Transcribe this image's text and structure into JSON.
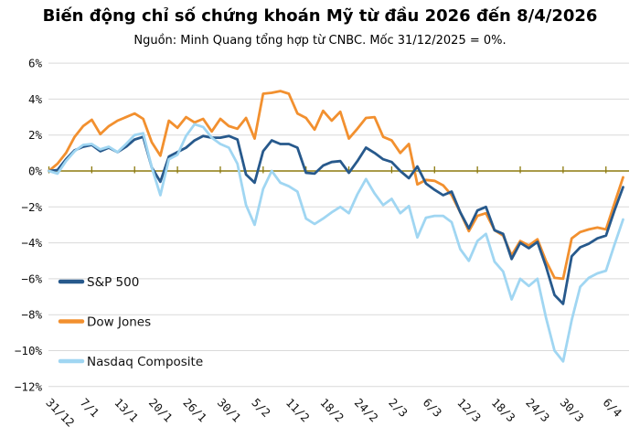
{
  "title": "Biến động chỉ số chứng khoán Mỹ từ đầu 2026 đến 8/4/2026",
  "subtitle": "Nguồn: Minh Quang tổng hợp từ CNBC. Mốc 31/12/2025 = 0%.",
  "colors": {
    "background": "#ffffff",
    "gridline": "#d9d9d9",
    "zero_axis": "#8d7a0f",
    "text": "#111111",
    "sp500": "#27598c",
    "dow": "#f2902f",
    "nasdaq": "#a0d6f2"
  },
  "chart_data": {
    "type": "line",
    "title": "Biến động chỉ số chứng khoán Mỹ từ đầu 2026 đến 8/4/2026",
    "subtitle": "Nguồn: Minh Quang tổng hợp từ CNBC. Mốc 31/12/2025 = 0%.",
    "ylabel": "",
    "xlabel": "",
    "unit": "%",
    "ylim": [
      -12,
      6
    ],
    "grid": "horizontal-only",
    "baseline": 0,
    "y_tick_labels": [
      "6%",
      "4%",
      "2%",
      "0%",
      "−2%",
      "−4%",
      "−6%",
      "−8%",
      "−10%",
      "−12%"
    ],
    "y_tick_values": [
      6,
      4,
      2,
      0,
      -2,
      -4,
      -6,
      -8,
      -10,
      -12
    ],
    "x_points_count": 68,
    "x_tick_labels": [
      {
        "index": 0,
        "label": "31/12"
      },
      {
        "index": 4,
        "label": "7/1"
      },
      {
        "index": 8,
        "label": "13/1"
      },
      {
        "index": 12,
        "label": "20/1"
      },
      {
        "index": 16,
        "label": "26/1"
      },
      {
        "index": 20,
        "label": "30/1"
      },
      {
        "index": 24,
        "label": "5/2"
      },
      {
        "index": 28,
        "label": "11/2"
      },
      {
        "index": 32,
        "label": "18/2"
      },
      {
        "index": 36,
        "label": "24/2"
      },
      {
        "index": 40,
        "label": "2/3"
      },
      {
        "index": 44,
        "label": "6/3"
      },
      {
        "index": 48,
        "label": "12/3"
      },
      {
        "index": 52,
        "label": "18/3"
      },
      {
        "index": 56,
        "label": "24/3"
      },
      {
        "index": 60,
        "label": "30/3"
      },
      {
        "index": 65,
        "label": "6/4"
      }
    ],
    "axis_tick_step": 5,
    "legend": {
      "position": "inside-left",
      "entries": [
        "S&P 500",
        "Dow Jones",
        "Nasdaq Composite"
      ]
    },
    "series": [
      {
        "name": "Dow Jones",
        "color": "#f2902f",
        "values": [
          0,
          0.4,
          1.0,
          1.9,
          2.5,
          2.85,
          2.05,
          2.5,
          2.8,
          3.0,
          3.2,
          2.9,
          1.6,
          0.85,
          2.8,
          2.4,
          3.0,
          2.7,
          2.9,
          2.2,
          2.9,
          2.5,
          2.35,
          2.95,
          1.8,
          4.3,
          4.35,
          4.45,
          4.3,
          3.2,
          2.95,
          2.3,
          3.35,
          2.8,
          3.3,
          1.8,
          2.35,
          2.95,
          3.0,
          1.9,
          1.7,
          1.0,
          1.5,
          -0.75,
          -0.5,
          -0.55,
          -0.8,
          -1.35,
          -2.3,
          -3.35,
          -2.5,
          -2.35,
          -3.3,
          -3.6,
          -4.7,
          -3.9,
          -4.15,
          -3.8,
          -5.0,
          -5.95,
          -6.0,
          -3.75,
          -3.4,
          -3.25,
          -3.15,
          -3.25,
          -1.8,
          -0.35
        ]
      },
      {
        "name": "S&P 500",
        "color": "#27598c",
        "values": [
          0,
          0.05,
          0.65,
          1.15,
          1.35,
          1.45,
          1.1,
          1.3,
          1.05,
          1.35,
          1.75,
          1.9,
          0.2,
          -0.6,
          0.8,
          1.05,
          1.3,
          1.7,
          1.95,
          1.85,
          1.85,
          1.95,
          1.75,
          -0.2,
          -0.65,
          1.1,
          1.7,
          1.5,
          1.5,
          1.3,
          -0.1,
          -0.15,
          0.3,
          0.5,
          0.55,
          -0.1,
          0.55,
          1.3,
          1.0,
          0.65,
          0.5,
          0.0,
          -0.4,
          0.25,
          -0.7,
          -1.05,
          -1.35,
          -1.15,
          -2.3,
          -3.2,
          -2.2,
          -2.0,
          -3.3,
          -3.5,
          -4.9,
          -4.0,
          -4.3,
          -3.95,
          -5.3,
          -6.9,
          -7.4,
          -4.75,
          -4.25,
          -4.05,
          -3.75,
          -3.6,
          -2.2,
          -0.9
        ]
      },
      {
        "name": "Nasdaq Composite",
        "color": "#a0d6f2",
        "values": [
          0,
          -0.15,
          0.55,
          1.1,
          1.45,
          1.5,
          1.2,
          1.35,
          1.05,
          1.5,
          2.0,
          2.1,
          0.2,
          -1.35,
          0.65,
          0.9,
          1.95,
          2.6,
          2.45,
          1.85,
          1.5,
          1.3,
          0.4,
          -1.9,
          -3.0,
          -1.0,
          0.0,
          -0.65,
          -0.85,
          -1.15,
          -2.65,
          -2.95,
          -2.65,
          -2.3,
          -2.0,
          -2.35,
          -1.3,
          -0.45,
          -1.25,
          -1.9,
          -1.55,
          -2.35,
          -1.95,
          -3.7,
          -2.6,
          -2.5,
          -2.5,
          -2.85,
          -4.35,
          -5.0,
          -3.9,
          -3.5,
          -5.05,
          -5.6,
          -7.15,
          -6.0,
          -6.4,
          -6.0,
          -8.15,
          -10.0,
          -10.6,
          -8.3,
          -6.45,
          -5.95,
          -5.7,
          -5.55,
          -4.1,
          -2.7
        ]
      }
    ]
  }
}
